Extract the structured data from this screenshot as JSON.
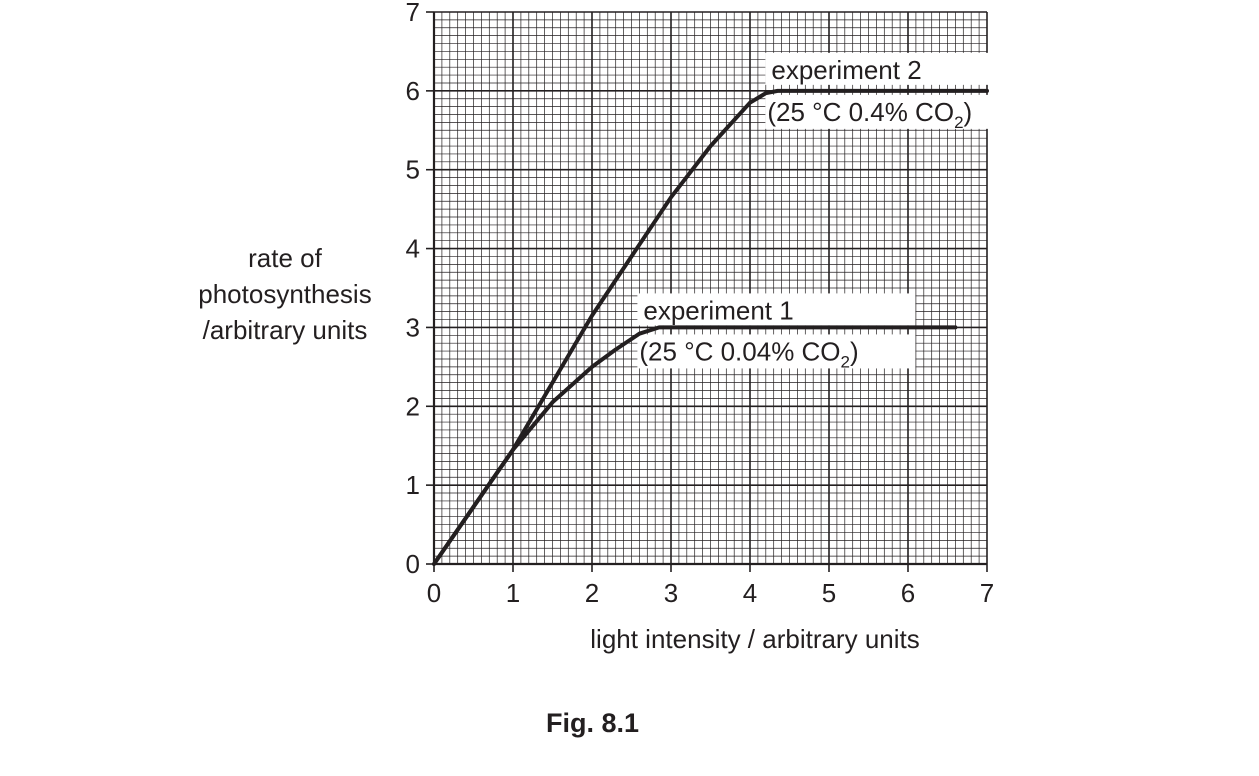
{
  "figure": {
    "caption": "Fig. 8.1"
  },
  "chart_data": {
    "type": "line",
    "title": "",
    "xlabel": "light intensity / arbitrary units",
    "ylabel_lines": [
      "rate of",
      "photosynthesis",
      "/arbitrary units"
    ],
    "xlim": [
      0,
      7
    ],
    "ylim": [
      0,
      7
    ],
    "xticks": [
      "0",
      "1",
      "2",
      "3",
      "4",
      "5",
      "6",
      "7"
    ],
    "yticks": [
      "0",
      "1",
      "2",
      "3",
      "4",
      "5",
      "6",
      "7"
    ],
    "grid": true,
    "series": [
      {
        "name": "experiment 1",
        "condition": "(25 °C   0.04% CO",
        "condition_sub": "2",
        "condition_end": ")",
        "x": [
          0,
          1,
          1.5,
          2,
          2.3,
          2.6,
          2.85,
          3.0,
          6.6
        ],
        "y": [
          0,
          1.45,
          2.05,
          2.5,
          2.72,
          2.92,
          3.0,
          3.0,
          3.0
        ]
      },
      {
        "name": "experiment 2",
        "condition": "(25 °C   0.4% CO",
        "condition_sub": "2",
        "condition_end": ")",
        "x": [
          0,
          1,
          2,
          3,
          3.5,
          4,
          4.2,
          4.35,
          7.0
        ],
        "y": [
          0,
          1.45,
          3.15,
          4.65,
          5.3,
          5.85,
          5.97,
          6.0,
          6.0
        ]
      }
    ]
  }
}
